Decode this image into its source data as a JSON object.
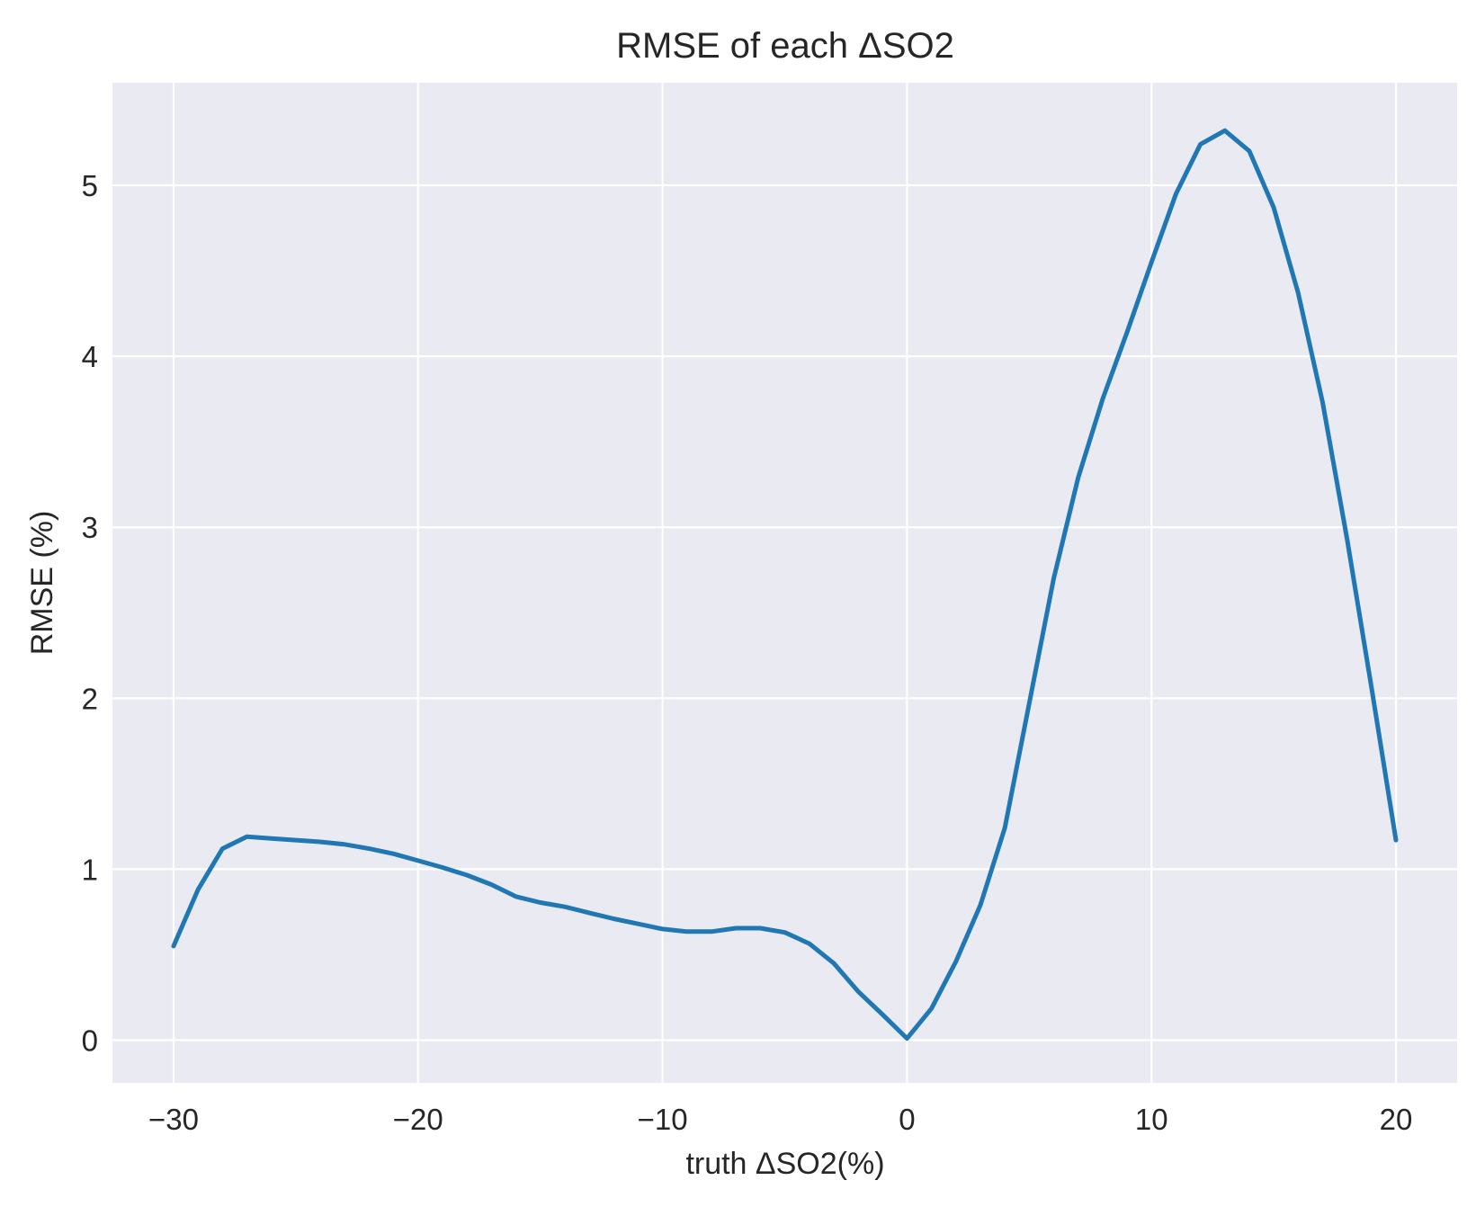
{
  "chart_data": {
    "type": "line",
    "title": "RMSE of each ΔSO2",
    "xlabel": "truth ΔSO2(%)",
    "ylabel": "RMSE (%)",
    "xlim": [
      -32.5,
      22.5
    ],
    "ylim": [
      -0.25,
      5.6
    ],
    "xticks": [
      -30,
      -20,
      -10,
      0,
      10,
      20
    ],
    "xtick_labels": [
      "−30",
      "−20",
      "−10",
      "0",
      "10",
      "20"
    ],
    "yticks": [
      0,
      1,
      2,
      3,
      4,
      5
    ],
    "ytick_labels": [
      "0",
      "1",
      "2",
      "3",
      "4",
      "5"
    ],
    "grid": true,
    "background": "#eaeaf2",
    "series": [
      {
        "color": "#1f77b4",
        "x": [
          -30,
          -29,
          -28,
          -27,
          -26,
          -25,
          -24,
          -23,
          -22,
          -21,
          -20,
          -19,
          -18,
          -17,
          -16,
          -15,
          -14,
          -13,
          -12,
          -11,
          -10,
          -9,
          -8,
          -7,
          -6,
          -5,
          -4,
          -3,
          -2,
          -1,
          0,
          1,
          2,
          3,
          4,
          5,
          6,
          7,
          8,
          9,
          10,
          11,
          12,
          13,
          14,
          15,
          16,
          17,
          18,
          19,
          20
        ],
        "y": [
          0.55,
          0.88,
          1.12,
          1.19,
          1.18,
          1.17,
          1.16,
          1.145,
          1.12,
          1.09,
          1.05,
          1.01,
          0.965,
          0.91,
          0.84,
          0.805,
          0.78,
          0.745,
          0.71,
          0.68,
          0.65,
          0.635,
          0.635,
          0.655,
          0.655,
          0.63,
          0.565,
          0.45,
          0.285,
          0.15,
          0.01,
          0.185,
          0.46,
          0.79,
          1.24,
          1.97,
          2.7,
          3.29,
          3.75,
          4.14,
          4.55,
          4.95,
          5.24,
          5.32,
          5.2,
          4.87,
          4.37,
          3.73,
          2.93,
          2.06,
          1.17
        ]
      }
    ]
  }
}
